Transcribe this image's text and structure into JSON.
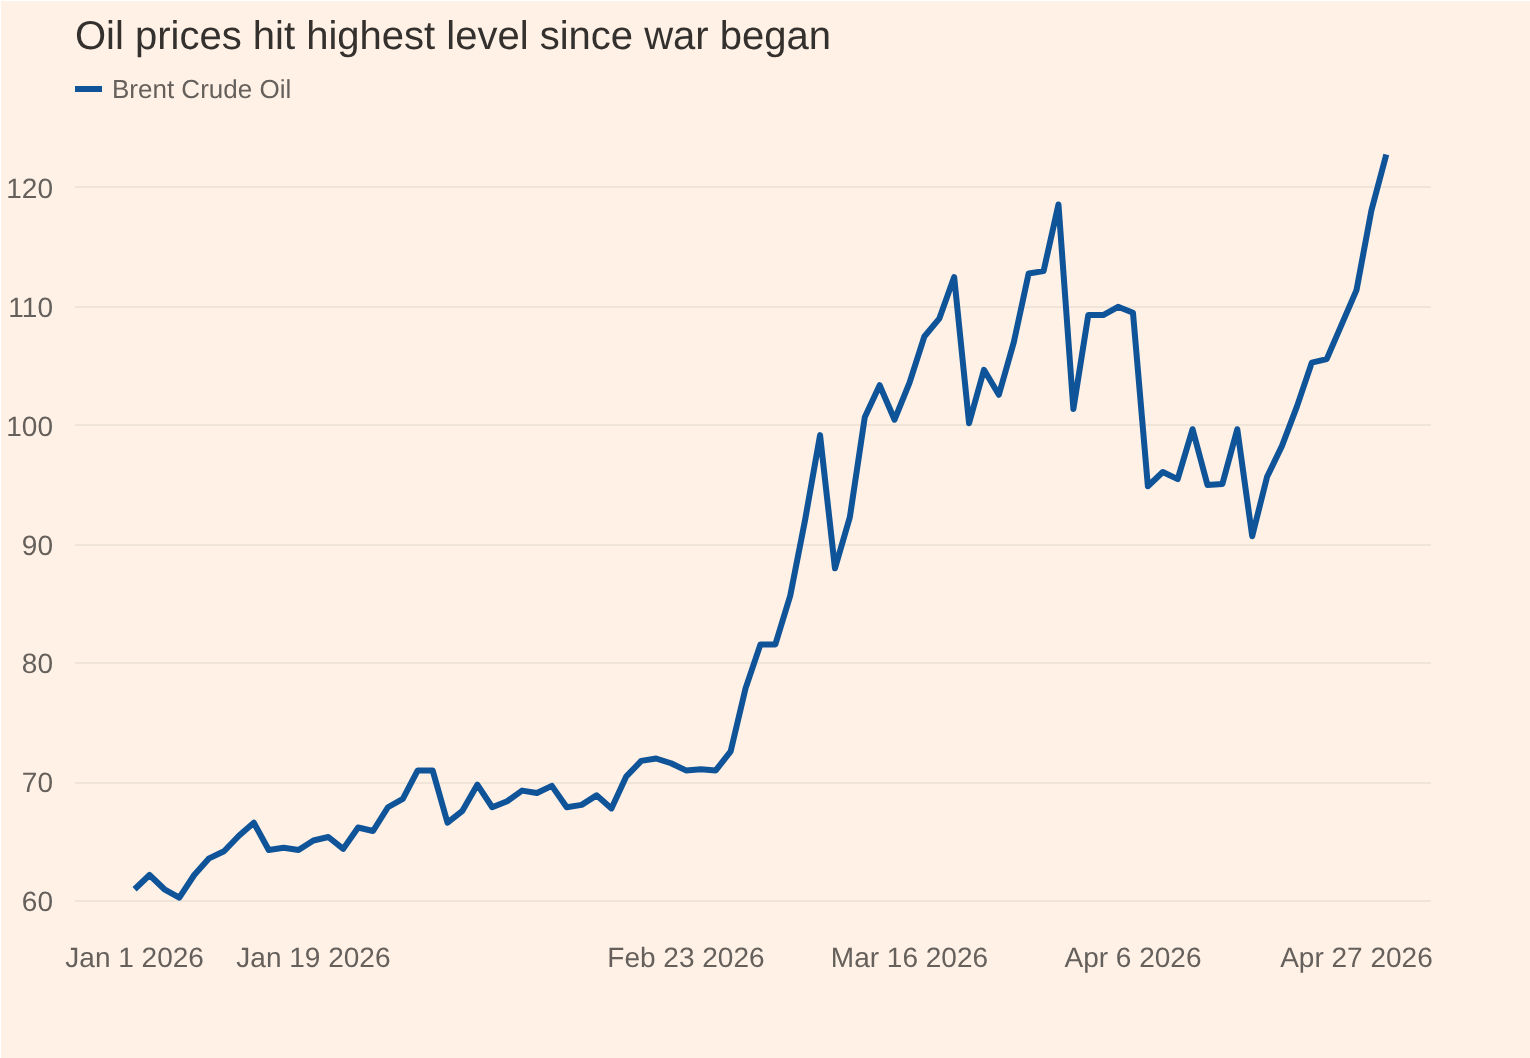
{
  "chart_data": {
    "type": "line",
    "title": "Oil prices hit highest level since war began",
    "categories": [
      "Jan 1 2026",
      null,
      null,
      null,
      null,
      null,
      null,
      null,
      null,
      null,
      null,
      null,
      "Jan 19 2026",
      null,
      null,
      null,
      null,
      null,
      null,
      null,
      null,
      null,
      null,
      null,
      null,
      null,
      null,
      null,
      null,
      null,
      null,
      null,
      null,
      null,
      null,
      null,
      null,
      "Feb 23 2026",
      null,
      null,
      null,
      null,
      null,
      null,
      null,
      null,
      null,
      null,
      null,
      null,
      null,
      null,
      "Mar 16 2026",
      null,
      null,
      null,
      null,
      null,
      null,
      null,
      null,
      null,
      null,
      null,
      null,
      null,
      null,
      "Apr 6 2026",
      null,
      null,
      null,
      null,
      null,
      null,
      null,
      null,
      null,
      null,
      null,
      null,
      null,
      null,
      "Apr 27 2026",
      null,
      null
    ],
    "series": [
      {
        "name": "Brent Crude Oil",
        "color": "#0f5499",
        "values": [
          61.0,
          62.2,
          61.0,
          60.3,
          62.2,
          63.6,
          64.2,
          65.5,
          66.6,
          64.3,
          64.5,
          64.3,
          65.1,
          65.4,
          64.4,
          66.2,
          65.9,
          67.9,
          68.6,
          71.0,
          71.0,
          66.6,
          67.6,
          69.8,
          67.9,
          68.4,
          69.3,
          69.1,
          69.7,
          67.9,
          68.1,
          68.9,
          67.8,
          70.5,
          71.8,
          72.0,
          71.6,
          71.0,
          71.1,
          71.0,
          72.6,
          77.9,
          81.6,
          81.6,
          85.7,
          92.1,
          99.2,
          88.0,
          92.3,
          100.7,
          103.4,
          100.5,
          103.6,
          107.5,
          109.0,
          112.5,
          100.2,
          104.7,
          102.6,
          107.0,
          112.8,
          113.0,
          118.6,
          101.4,
          109.3,
          109.3,
          110.0,
          109.5,
          94.9,
          96.1,
          95.5,
          99.7,
          95.0,
          95.1,
          99.7,
          90.7,
          95.7,
          98.3,
          101.6,
          105.3,
          105.6,
          108.5,
          111.4,
          118.1,
          122.8
        ]
      }
    ],
    "ylim": [
      58.5,
      130
    ],
    "yticks": [
      60,
      70,
      80,
      90,
      100,
      110,
      120
    ],
    "grid": "y",
    "legend": "top left",
    "line_style": "solid",
    "marker": "none"
  }
}
